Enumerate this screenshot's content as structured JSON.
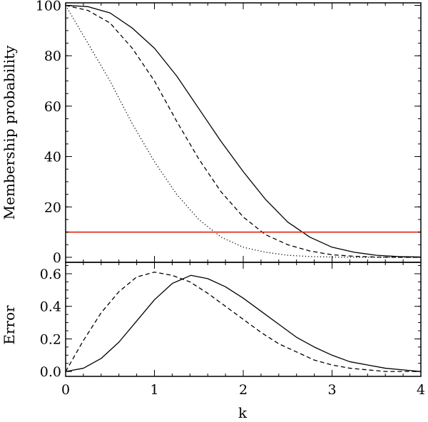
{
  "chart_data": [
    {
      "type": "line",
      "ylabel": "Membership probability",
      "xlim": [
        0,
        4
      ],
      "ylim": [
        -2,
        101
      ],
      "yticks": [
        0,
        20,
        40,
        60,
        80,
        100
      ],
      "ytick_labels": [
        "0",
        "20",
        "40",
        "60",
        "80",
        "100"
      ],
      "grid": false,
      "series": [
        {
          "style": "solid",
          "color": "#000000",
          "x": [
            0,
            0.25,
            0.5,
            0.75,
            1,
            1.25,
            1.5,
            1.75,
            2,
            2.25,
            2.5,
            2.75,
            3,
            3.25,
            3.5,
            3.75,
            4
          ],
          "y": [
            100,
            99.5,
            97,
            91,
            83,
            72,
            59,
            46,
            34,
            23,
            14,
            8,
            4,
            2,
            0.8,
            0.3,
            0.1
          ]
        },
        {
          "style": "dashed",
          "color": "#000000",
          "x": [
            0,
            0.25,
            0.5,
            0.75,
            1,
            1.25,
            1.5,
            1.75,
            2,
            2.25,
            2.5,
            2.75,
            3,
            3.25,
            3.5,
            3.75,
            4
          ],
          "y": [
            100,
            98,
            93,
            83,
            70,
            54,
            39,
            26,
            16,
            9,
            5,
            2.5,
            1,
            0.4,
            0.1,
            0,
            0
          ]
        },
        {
          "style": "dotted",
          "color": "#000000",
          "x": [
            0,
            0.25,
            0.5,
            0.75,
            1,
            1.25,
            1.5,
            1.75,
            2,
            2.25,
            2.5,
            2.75,
            3,
            3.25,
            3.5,
            3.75,
            4
          ],
          "y": [
            100,
            85,
            70,
            53,
            38,
            25,
            15,
            8,
            4,
            2,
            0.8,
            0.3,
            0.1,
            0,
            0,
            0,
            0
          ]
        },
        {
          "style": "solid",
          "color": "#e0301e",
          "x": [
            0,
            4
          ],
          "y": [
            10,
            10
          ]
        }
      ]
    },
    {
      "type": "line",
      "xlabel": "k",
      "ylabel": "Error",
      "xlim": [
        0,
        4
      ],
      "ylim": [
        -0.03,
        0.67
      ],
      "xticks": [
        0,
        1,
        2,
        3,
        4
      ],
      "xtick_labels": [
        "0",
        "1",
        "2",
        "3",
        "4"
      ],
      "yticks": [
        0.0,
        0.2,
        0.4,
        0.6
      ],
      "ytick_labels": [
        "0.0",
        "0.2",
        "0.4",
        "0.6"
      ],
      "grid": false,
      "series": [
        {
          "style": "solid",
          "color": "#000000",
          "x": [
            0,
            0.2,
            0.4,
            0.6,
            0.8,
            1,
            1.2,
            1.41,
            1.6,
            1.8,
            2,
            2.2,
            2.4,
            2.6,
            2.8,
            3,
            3.2,
            3.4,
            3.6,
            3.8,
            4
          ],
          "y": [
            0,
            0.02,
            0.08,
            0.18,
            0.31,
            0.44,
            0.54,
            0.59,
            0.57,
            0.52,
            0.45,
            0.37,
            0.29,
            0.21,
            0.15,
            0.1,
            0.06,
            0.04,
            0.02,
            0.01,
            0
          ]
        },
        {
          "style": "dashed",
          "color": "#000000",
          "x": [
            0,
            0.2,
            0.4,
            0.6,
            0.8,
            1,
            1.2,
            1.4,
            1.6,
            1.8,
            2,
            2.2,
            2.4,
            2.6,
            2.8,
            3,
            3.2,
            3.4,
            3.6,
            3.8,
            4
          ],
          "y": [
            0,
            0.19,
            0.36,
            0.49,
            0.58,
            0.61,
            0.59,
            0.55,
            0.48,
            0.4,
            0.32,
            0.24,
            0.17,
            0.12,
            0.07,
            0.04,
            0.02,
            0.01,
            0,
            0,
            0
          ]
        }
      ]
    }
  ]
}
